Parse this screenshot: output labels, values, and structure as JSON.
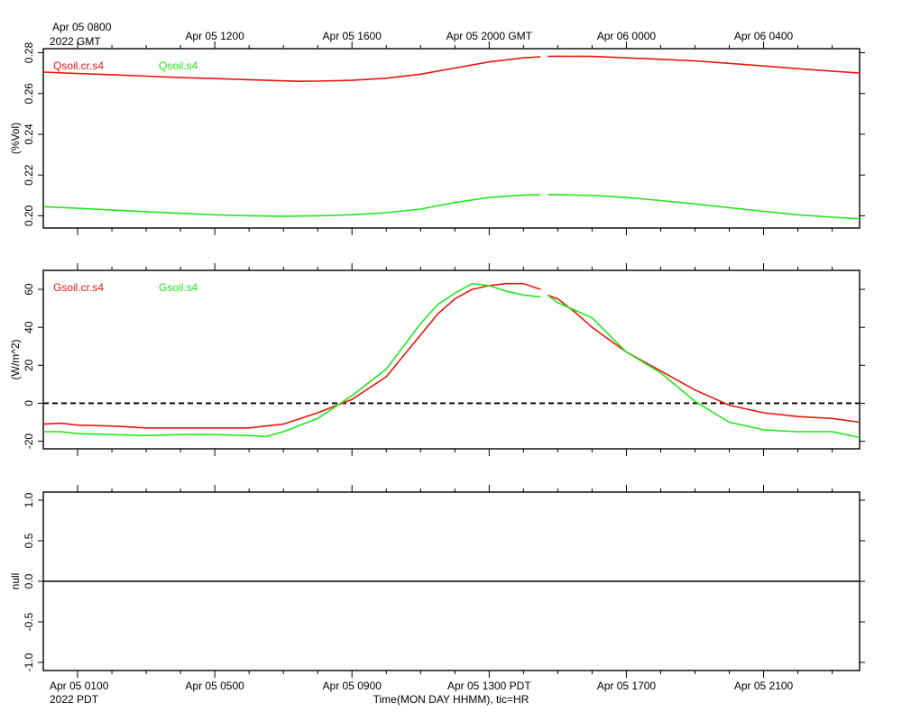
{
  "top_time_labels": {
    "first_line1": "Apr 05 0800",
    "first_line2": "2022 GMT",
    "others": [
      "Apr 05 1200",
      "Apr 05 1600",
      "Apr 05 2000 GMT",
      "Apr 06 0000",
      "Apr 06 0400"
    ]
  },
  "bottom_time_labels": {
    "first_line1": "Apr 05 0100",
    "first_line2": "2022 PDT",
    "others": [
      "Apr 05 0500",
      "Apr 05 0900",
      "Apr 05 1300 PDT",
      "Apr 05 1700",
      "Apr 05 2100"
    ],
    "axis_title": "Time(MON DAY HHMM), tic=HR"
  },
  "colors": {
    "red": "#e8150f",
    "green": "#22e61c",
    "axis": "#000000"
  },
  "chart_data": [
    {
      "type": "line",
      "ylabel": "(%Vol)",
      "ylim": [
        0.194,
        0.282
      ],
      "yticks": [
        0.2,
        0.22,
        0.24,
        0.26,
        0.28
      ],
      "ytick_labels": [
        "0.20",
        "0.22",
        "0.24",
        "0.26",
        "0.28"
      ],
      "x_unit": "hours since Apr 05 0000 PDT",
      "xlim": [
        0.0,
        23.8
      ],
      "gap": [
        14.5,
        14.7
      ],
      "series": [
        {
          "name": "Qsoil.cr.s4",
          "color": "#e8150f",
          "x": [
            0.0,
            1.0,
            2.0,
            3.0,
            4.0,
            5.0,
            6.0,
            7.0,
            7.5,
            8.0,
            9.0,
            10.0,
            11.0,
            12.0,
            13.0,
            14.0,
            14.5,
            14.7,
            15.0,
            16.0,
            17.0,
            18.0,
            19.0,
            20.0,
            21.0,
            22.0,
            23.0,
            23.8
          ],
          "values": [
            0.2705,
            0.2698,
            0.2692,
            0.2685,
            0.2678,
            0.2673,
            0.2668,
            0.2662,
            0.266,
            0.2661,
            0.2665,
            0.2675,
            0.2695,
            0.2725,
            0.2755,
            0.2775,
            0.278,
            0.2782,
            0.2783,
            0.2782,
            0.2775,
            0.2768,
            0.276,
            0.2748,
            0.2735,
            0.2722,
            0.271,
            0.27
          ]
        },
        {
          "name": "Qsoil.s4",
          "color": "#22e61c",
          "x": [
            0.0,
            1.0,
            2.0,
            3.0,
            4.0,
            5.0,
            6.0,
            7.0,
            8.0,
            9.0,
            10.0,
            11.0,
            12.0,
            13.0,
            14.0,
            14.5,
            14.7,
            15.0,
            16.0,
            17.0,
            18.0,
            19.0,
            20.0,
            21.0,
            22.0,
            23.0,
            23.8
          ],
          "values": [
            0.2045,
            0.2037,
            0.2028,
            0.202,
            0.2012,
            0.2005,
            0.2,
            0.1998,
            0.2,
            0.2005,
            0.2015,
            0.2033,
            0.2065,
            0.209,
            0.2102,
            0.2103,
            0.2103,
            0.2103,
            0.21,
            0.209,
            0.2075,
            0.2058,
            0.204,
            0.2022,
            0.2005,
            0.1993,
            0.1985
          ]
        }
      ]
    },
    {
      "type": "line",
      "ylabel": "(W/m^2)",
      "ylim": [
        -24,
        70
      ],
      "yticks": [
        -20,
        0,
        20,
        40,
        60
      ],
      "ytick_labels": [
        "-20",
        "0",
        "20",
        "40",
        "60"
      ],
      "zero_line": true,
      "x_unit": "hours since Apr 05 0000 PDT",
      "xlim": [
        0.0,
        23.8
      ],
      "gap": [
        14.5,
        14.7
      ],
      "series": [
        {
          "name": "Gsoil.cr.s4",
          "color": "#e8150f",
          "x": [
            0.0,
            0.5,
            1.0,
            2.0,
            3.0,
            4.0,
            5.0,
            6.0,
            7.0,
            8.0,
            9.0,
            10.0,
            10.5,
            11.0,
            11.5,
            12.0,
            12.5,
            13.0,
            13.5,
            14.0,
            14.5,
            14.7,
            15.0,
            15.5,
            16.0,
            17.0,
            18.0,
            19.0,
            20.0,
            21.0,
            22.0,
            23.0,
            23.8
          ],
          "values": [
            -11,
            -10.5,
            -11.5,
            -12,
            -13,
            -13,
            -13,
            -13,
            -11,
            -5,
            2,
            14,
            25,
            36,
            47,
            55,
            60,
            62,
            63,
            63,
            60,
            57,
            55,
            48,
            40,
            27,
            17,
            7,
            -1,
            -5,
            -7,
            -8,
            -10
          ]
        },
        {
          "name": "Gsoil.s4",
          "color": "#22e61c",
          "x": [
            0.0,
            0.5,
            1.0,
            2.0,
            3.0,
            4.0,
            5.0,
            6.0,
            6.5,
            7.0,
            8.0,
            9.0,
            10.0,
            10.5,
            11.0,
            11.5,
            12.0,
            12.5,
            13.0,
            13.5,
            14.0,
            14.5,
            14.7,
            15.0,
            16.0,
            17.0,
            18.0,
            19.0,
            20.0,
            21.0,
            22.0,
            23.0,
            23.8
          ],
          "values": [
            -15,
            -15,
            -16,
            -16.5,
            -17,
            -16.5,
            -16.5,
            -17,
            -17.5,
            -15,
            -8,
            4,
            18,
            30,
            42,
            52,
            58,
            63,
            62,
            59,
            57,
            56,
            57,
            53,
            45,
            27,
            16,
            1,
            -10,
            -14,
            -15,
            -15,
            -18
          ]
        }
      ]
    },
    {
      "type": "line",
      "ylabel": "null",
      "ylim": [
        -1.1,
        1.1
      ],
      "yticks": [
        -1.0,
        -0.5,
        0.0,
        0.5,
        1.0
      ],
      "ytick_labels": [
        "-1.0",
        "-0.5",
        "0.0",
        "0.5",
        "1.0"
      ],
      "x_unit": "hours since Apr 05 0000 PDT",
      "xlim": [
        0.0,
        23.8
      ],
      "series": [
        {
          "name": "",
          "color": "#000000",
          "x": [
            0.0,
            23.8
          ],
          "values": [
            0.0,
            0.0
          ]
        }
      ]
    }
  ]
}
